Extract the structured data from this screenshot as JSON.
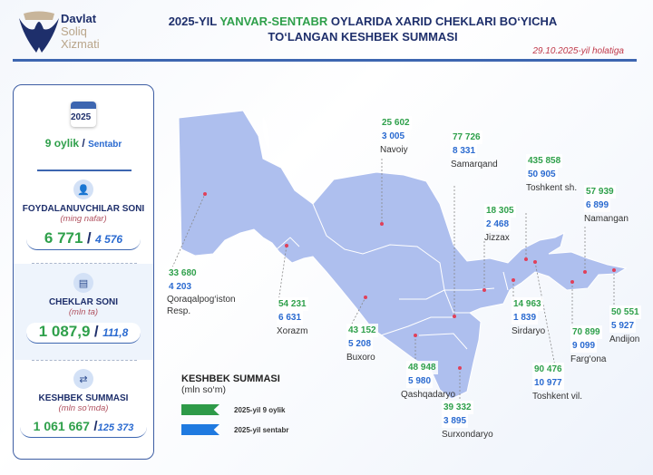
{
  "header": {
    "logo": {
      "line1": "Davlat",
      "line2": "Soliq",
      "line3": "Xizmati"
    },
    "title_part1": "2025-YIL ",
    "title_highlight": "YANVAR-SENTABR",
    "title_part2": " OYLARIDA XARID CHEKLARI BO‘YICHA",
    "title_line2": "TO‘LANGAN KESHBEK SUMMASI",
    "date": "29.10.2025-yil holatiga"
  },
  "panel": {
    "calendar_year": "2025",
    "period_main": "9 oylik",
    "separator": "/",
    "period_sub": "Sentabr",
    "stats": [
      {
        "title": "FOYDALANUVCHILAR SONI",
        "unit": "(ming nafar)",
        "value_9m": "6 771",
        "value_sep": "4 576",
        "icon": "user-icon"
      },
      {
        "title": "CHEKLAR SONI",
        "unit": "(mln ta)",
        "value_9m": "1 087,9",
        "value_sep": "111,8",
        "icon": "receipt-icon"
      },
      {
        "title": "KESHBEK SUMMASI",
        "unit": "(mln so‘mda)",
        "value_9m": "1 061 667",
        "value_sep": "125 373",
        "icon": "cashback-icon"
      }
    ]
  },
  "regions": [
    {
      "name": "Navoiy",
      "v9m": "25 602",
      "vsep": "3 005"
    },
    {
      "name": "Samarqand",
      "v9m": "77 726",
      "vsep": "8 331"
    },
    {
      "name": "Toshkent sh.",
      "v9m": "435 858",
      "vsep": "50 905"
    },
    {
      "name": "Namangan",
      "v9m": "57 939",
      "vsep": "6 899"
    },
    {
      "name": "Jizzax",
      "v9m": "18 305",
      "vsep": "2 468"
    },
    {
      "name": "Qoraqalpog‘iston Resp.",
      "v9m": "33 680",
      "vsep": "4 203"
    },
    {
      "name": "Xorazm",
      "v9m": "54 231",
      "vsep": "6 631"
    },
    {
      "name": "Buxoro",
      "v9m": "43 152",
      "vsep": "5 208"
    },
    {
      "name": "Sirdaryo",
      "v9m": "14 963",
      "vsep": "1 839"
    },
    {
      "name": "Andijon",
      "v9m": "50 551",
      "vsep": "5 927"
    },
    {
      "name": "Farg‘ona",
      "v9m": "70 899",
      "vsep": "9 099"
    },
    {
      "name": "Qashqadaryo",
      "v9m": "48 948",
      "vsep": "5 980"
    },
    {
      "name": "Toshkent vil.",
      "v9m": "90 476",
      "vsep": "10 977"
    },
    {
      "name": "Surxondaryo",
      "v9m": "39 332",
      "vsep": "3 895"
    }
  ],
  "legend": {
    "title": "KESHBEK SUMMASI",
    "unit": "(mln so‘m)",
    "items": [
      {
        "label": "2025-yil 9 oylik",
        "color": "#2e9a48"
      },
      {
        "label": "2025-yil sentabr",
        "color": "#1f7ae0"
      }
    ]
  },
  "colors": {
    "map_fill": "#aebfee",
    "accent_green": "#2fa04b",
    "accent_blue": "#2a6ad0",
    "dot": "#e0405a"
  }
}
